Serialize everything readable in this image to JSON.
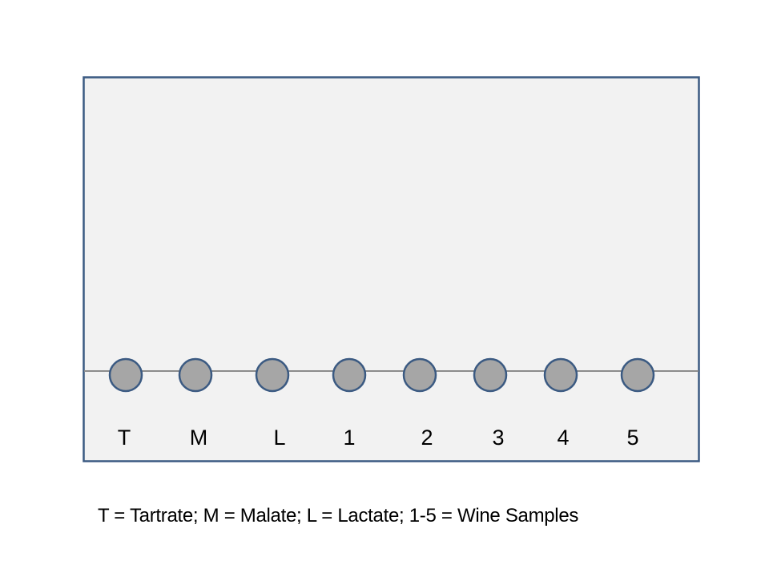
{
  "plate": {
    "background_color": "#f2f2f2",
    "border_color": "#3b5a82",
    "origin_line_color": "#8c8c8c"
  },
  "spot_style": {
    "fill_color": "#a6a6a6",
    "stroke_color": "#3b5a82"
  },
  "lanes": [
    {
      "label": "T"
    },
    {
      "label": "M"
    },
    {
      "label": "L"
    },
    {
      "label": "1"
    },
    {
      "label": "2"
    },
    {
      "label": "3"
    },
    {
      "label": "4"
    },
    {
      "label": "5"
    }
  ],
  "legend": {
    "text": "T = Tartrate; M = Malate; L = Lactate; 1-5 = Wine Samples"
  }
}
